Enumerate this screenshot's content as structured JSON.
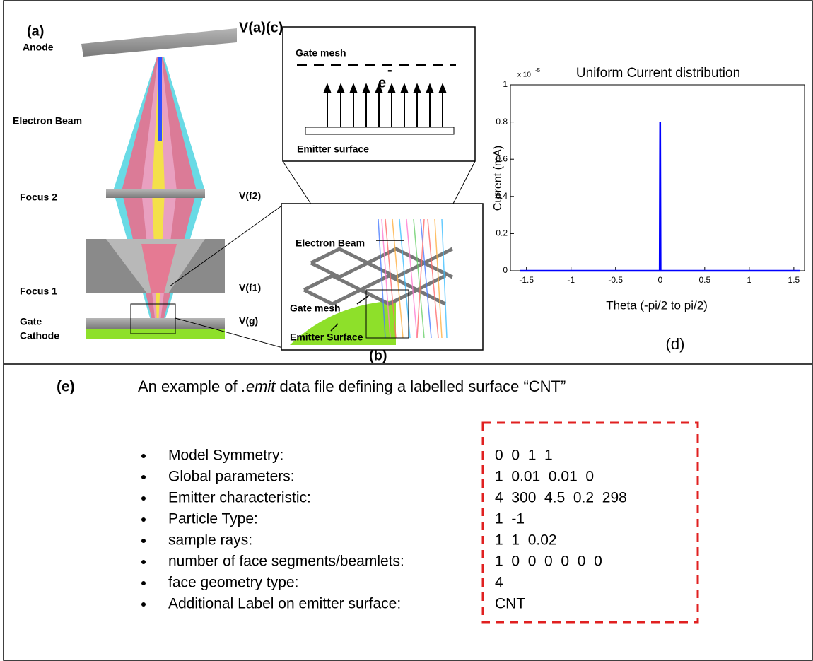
{
  "panel_a": {
    "label": "(a)",
    "anode": "Anode",
    "electron_beam": "Electron Beam",
    "focus_2": "Focus 2",
    "focus_1": "Focus 1",
    "gate": "Gate",
    "cathode": "Cathode",
    "voltages": [
      "V(a)",
      "V(f2)",
      "V(f1)",
      "V(g)"
    ]
  },
  "panel_b": {
    "label": "(b)",
    "electron_beam": "Electron Beam",
    "gate_mesh": "Gate mesh",
    "emitter_surface": "Emitter Surface"
  },
  "panel_c": {
    "label": "(c)",
    "gate_mesh": "Gate mesh",
    "electron": "e",
    "charge": "-",
    "emitter_surface": "Emitter surface"
  },
  "panel_d": {
    "label": "(d)"
  },
  "chart_data": {
    "type": "line",
    "title": "Uniform Current distribution",
    "xlabel": "Theta (-pi/2 to pi/2)",
    "ylabel": "Current (mA)",
    "y_multiplier": {
      "base": "x 10",
      "exponent": "-5"
    },
    "x": [
      -1.57,
      -0.005,
      0,
      0.005,
      1.57
    ],
    "values": [
      0,
      0,
      0.8,
      0,
      0
    ],
    "color": "#0000ff",
    "xlim": [
      -1.68,
      1.62
    ],
    "ylim": [
      0,
      1
    ],
    "xticks": [
      -1.5,
      -1,
      -0.5,
      0,
      0.5,
      1,
      1.5
    ],
    "yticks": [
      0,
      0.2,
      0.4,
      0.6,
      0.8,
      1
    ],
    "grid": false
  },
  "panel_e": {
    "label": "(e)",
    "caption": [
      "An example of ",
      ".emit",
      " data file defining a labelled surface “CNT”"
    ],
    "rows": [
      [
        "Model Symmetry:",
        "0  0  1  1"
      ],
      [
        "Global parameters:",
        "1  0.01  0.01  0"
      ],
      [
        "Emitter characteristic:",
        "4  300  4.5  0.2  298"
      ],
      [
        "Particle Type:",
        "1  -1"
      ],
      [
        "sample rays:",
        "1  1  0.02"
      ],
      [
        "number of face segments/beamlets:",
        "1  0  0  0  0  0  0"
      ],
      [
        "face geometry type:",
        "4"
      ],
      [
        "Additional Label on emitter surface:",
        "CNT"
      ]
    ]
  }
}
